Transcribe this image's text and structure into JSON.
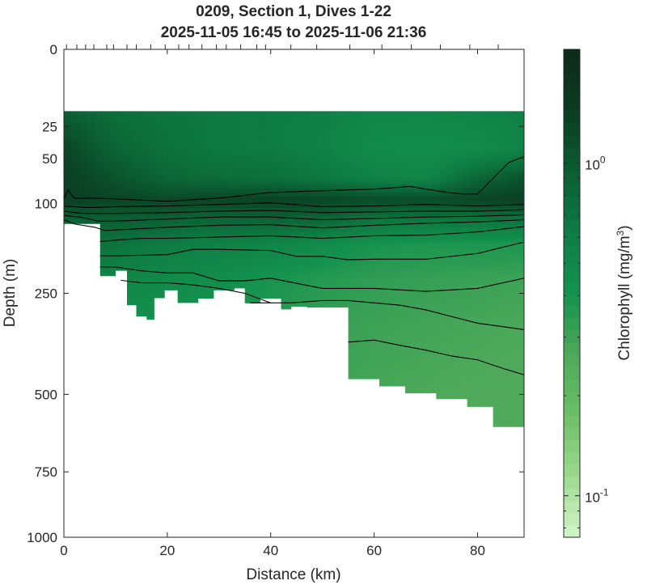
{
  "chart_data": {
    "type": "heatmap",
    "title": "0209, Section 1, Dives 1-22",
    "subtitle": "2025-11-05 16:45 to 2025-11-06 21:36",
    "xlabel": "Distance (km)",
    "ylabel": "Depth (m)",
    "xlim": [
      0,
      89
    ],
    "ylim": [
      1000,
      0
    ],
    "yscale": "sqrt",
    "x_ticks": [
      0,
      20,
      40,
      60,
      80
    ],
    "y_ticks": [
      0,
      25,
      50,
      100,
      250,
      500,
      750,
      1000
    ],
    "colorbar": {
      "label": "Chlorophyll (mg/m",
      "label_sup": "3",
      "label_close": ")",
      "scale": "log",
      "range": [
        0.075,
        2.2
      ],
      "tick_base": "10",
      "ticks": [
        {
          "value": 0.1,
          "exp": "-1"
        },
        {
          "value": 1,
          "exp": "0"
        }
      ],
      "colors_low_to_high": [
        "#d2f5c9",
        "#9dda8f",
        "#6cbf67",
        "#4ea95a",
        "#14924e",
        "#0e7c43",
        "#0b5e33",
        "#0b3c22",
        "#0d2a18"
      ]
    },
    "dive_distances_km": [
      0.5,
      2.5,
      4.2,
      5.8,
      8.3,
      9.6,
      12.2,
      14.0,
      16.8,
      19.6,
      22.2,
      24.2,
      26.7,
      29.5,
      31.4,
      34.2,
      37.3,
      39.0,
      43.9,
      48.9,
      55.3,
      61.5,
      67.2,
      72.8,
      78.5,
      84.0
    ],
    "bottom_profile": {
      "distance_km": [
        0,
        7,
        7,
        10,
        10,
        12.2,
        12.2,
        14,
        14,
        16,
        16,
        17.5,
        17.5,
        19.5,
        19.5,
        22,
        22,
        26,
        26,
        29,
        29,
        33,
        33,
        35,
        35,
        38,
        38,
        42,
        42,
        44,
        44,
        47,
        47,
        55,
        55,
        61,
        61,
        66,
        66,
        72,
        72,
        78,
        78,
        83,
        83,
        89
      ],
      "depth_m": [
        128,
        128,
        216,
        216,
        206,
        206,
        275,
        275,
        300,
        300,
        307,
        307,
        260,
        260,
        244,
        244,
        270,
        270,
        261,
        261,
        244,
        244,
        240,
        240,
        271,
        271,
        261,
        261,
        284,
        284,
        278,
        278,
        280,
        280,
        457,
        457,
        477,
        477,
        497,
        497,
        514,
        514,
        537,
        537,
        599,
        599
      ]
    },
    "surface_limit_m": 16,
    "field_grid": {
      "x_km": [
        0,
        10,
        20,
        30,
        40,
        50,
        60,
        70,
        80,
        89
      ],
      "depth_m": [
        16,
        40,
        70,
        95,
        120,
        160,
        220,
        320,
        500,
        700
      ],
      "values_mg_m3": [
        [
          0.95,
          0.75,
          0.68,
          0.64,
          0.62,
          0.58,
          0.5,
          0.5,
          0.52,
          0.58
        ],
        [
          1.3,
          0.85,
          0.72,
          0.64,
          0.62,
          0.56,
          0.46,
          0.44,
          0.46,
          0.52
        ],
        [
          1.4,
          1.1,
          0.85,
          0.78,
          0.75,
          0.66,
          0.56,
          0.52,
          0.85,
          1.1
        ],
        [
          1.4,
          1.3,
          1.25,
          1.3,
          1.35,
          1.3,
          1.2,
          1.2,
          1.3,
          1.4
        ],
        [
          0.9,
          0.95,
          0.9,
          0.85,
          0.9,
          0.85,
          0.7,
          0.68,
          0.7,
          0.72
        ],
        [
          0.7,
          0.7,
          0.62,
          0.56,
          0.52,
          0.46,
          0.4,
          0.38,
          0.38,
          0.38
        ],
        [
          0.55,
          0.52,
          0.48,
          0.44,
          0.4,
          0.36,
          0.33,
          0.32,
          0.31,
          0.3
        ],
        [
          0.45,
          0.42,
          0.4,
          0.38,
          0.35,
          0.32,
          0.3,
          0.29,
          0.28,
          0.27
        ],
        [
          0.4,
          0.38,
          0.36,
          0.34,
          0.32,
          0.3,
          0.28,
          0.27,
          0.26,
          0.26
        ],
        [
          0.4,
          0.38,
          0.36,
          0.34,
          0.32,
          0.3,
          0.28,
          0.27,
          0.26,
          0.26
        ]
      ]
    },
    "contours": [
      {
        "x_km": [
          0,
          0.8,
          2,
          4,
          6,
          10,
          20,
          30,
          40,
          50,
          60,
          67,
          72,
          77,
          80,
          83,
          86,
          89
        ],
        "depth_m": [
          94,
          83,
          93,
          93,
          93,
          94,
          97,
          93,
          86,
          84,
          82,
          79,
          84,
          88,
          88,
          70,
          54,
          48
        ]
      },
      {
        "x_km": [
          0,
          2,
          4,
          6,
          10,
          20,
          30,
          40,
          50,
          60,
          70,
          80,
          89
        ],
        "depth_m": [
          103,
          104,
          105,
          105,
          104,
          103,
          101,
          99,
          104,
          103,
          101,
          103,
          101
        ]
      },
      {
        "x_km": [
          0,
          2,
          4,
          6,
          10,
          20,
          30,
          40,
          50,
          60,
          70,
          80,
          89
        ],
        "depth_m": [
          110,
          112,
          113,
          113,
          113,
          112,
          110,
          109,
          112,
          111,
          110,
          110,
          108
        ]
      },
      {
        "x_km": [
          0,
          3,
          5,
          6.5,
          10,
          20,
          30,
          40,
          50,
          60,
          70,
          80,
          89
        ],
        "depth_m": [
          116,
          118,
          121,
          124,
          124,
          121,
          118,
          118,
          122,
          120,
          118,
          117,
          115
        ]
      },
      {
        "x_km": [
          0,
          2,
          6,
          8,
          10,
          20,
          30,
          40,
          50,
          60,
          70,
          80,
          89
        ],
        "depth_m": [
          122,
          128,
          133,
          138,
          137,
          133,
          130,
          129,
          134,
          130,
          127,
          125,
          122
        ]
      },
      {
        "x_km": [
          7,
          10,
          15,
          20,
          30,
          40,
          50,
          60,
          70,
          80,
          89
        ],
        "depth_m": [
          155,
          153,
          150,
          150,
          148,
          146,
          150,
          146,
          145,
          140,
          132
        ]
      },
      {
        "x_km": [
          7,
          10,
          15,
          20,
          25,
          30,
          40,
          45,
          50,
          55,
          60,
          70,
          80,
          89
        ],
        "depth_m": [
          179,
          179,
          178,
          177,
          168,
          168,
          170,
          180,
          180,
          186,
          185,
          185,
          175,
          156
        ]
      },
      {
        "x_km": [
          7,
          10,
          15,
          20,
          25,
          30,
          35,
          40,
          50,
          60,
          70,
          80,
          89
        ],
        "depth_m": [
          199,
          199,
          206,
          210,
          210,
          225,
          225,
          220,
          240,
          240,
          246,
          240,
          220
        ]
      },
      {
        "x_km": [
          11,
          15,
          20,
          25,
          30,
          35,
          40
        ],
        "depth_m": [
          224,
          229,
          229,
          233,
          240,
          250,
          270
        ]
      },
      {
        "x_km": [
          36,
          40,
          44,
          50,
          55,
          60,
          65,
          70,
          75,
          80,
          89
        ],
        "depth_m": [
          270,
          270,
          270,
          265,
          265,
          270,
          275,
          285,
          300,
          315,
          330
        ]
      },
      {
        "x_km": [
          55,
          60,
          65,
          70,
          75,
          80,
          85,
          89
        ],
        "depth_m": [
          360,
          355,
          368,
          380,
          395,
          405,
          428,
          445
        ]
      }
    ]
  }
}
